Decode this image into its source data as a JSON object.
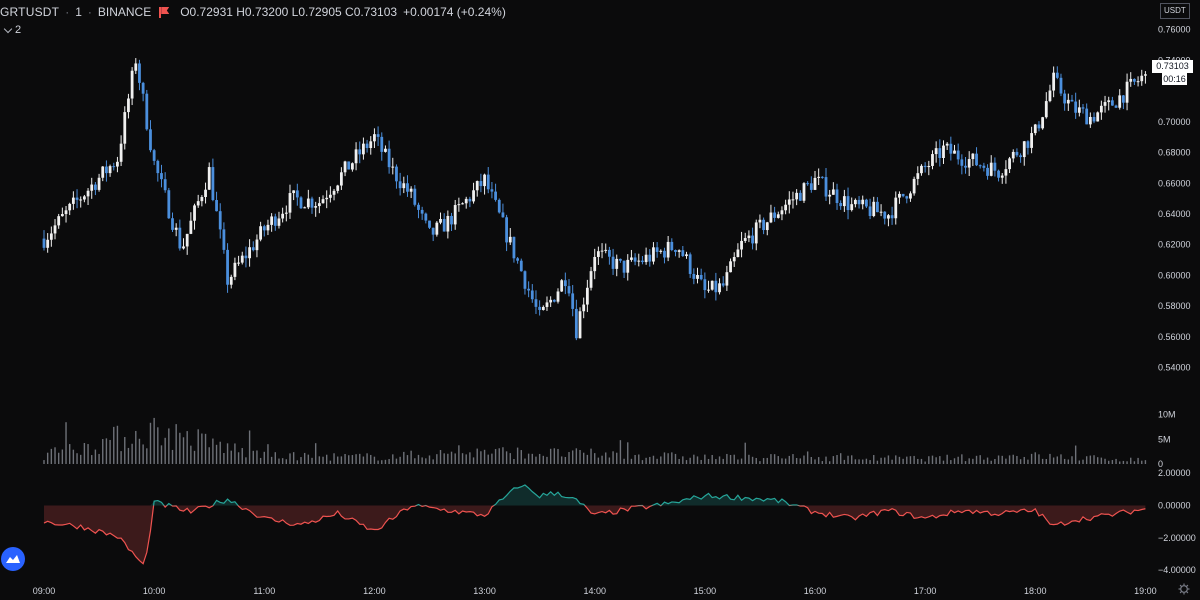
{
  "header": {
    "symbol": "GRTUSDT",
    "separator": "·",
    "interval": "1",
    "exchange": "BINANCE",
    "ohlc": "O0.72931 H0.73200 L0.72905 C0.73103",
    "change": "+0.00174 (+0.24%)",
    "flag_icon": "flag-icon",
    "flag_color": "#ef5350"
  },
  "collapse_toggle": {
    "icon": "chevron-down-icon",
    "count": "2"
  },
  "price_axis": {
    "currency": "USDT",
    "last_price": "0.73103",
    "countdown": "00:16",
    "ticks": [
      "0.76000",
      "0.74000",
      "0.72000",
      "0.70000",
      "0.68000",
      "0.66000",
      "0.64000",
      "0.62000",
      "0.60000",
      "0.58000",
      "0.56000",
      "0.54000"
    ]
  },
  "volume_axis": {
    "ticks": [
      "10M",
      "5M",
      "0"
    ]
  },
  "oscillator_axis": {
    "ticks": [
      "2.00000",
      "0.00000",
      "−2.00000",
      "−4.00000"
    ]
  },
  "time_axis": {
    "ticks": [
      "09:00",
      "10:00",
      "11:00",
      "12:00",
      "13:00",
      "14:00",
      "15:00",
      "16:00",
      "17:00",
      "18:00",
      "19:00"
    ]
  },
  "colors": {
    "background": "#0b0b0c",
    "candle_up": "#f0f0f0",
    "candle_down": "#4b8fdd",
    "volume": "#6e7178",
    "osc_positive": "#26a69a",
    "osc_negative": "#ef5350",
    "axis_text": "#d1d4dc"
  },
  "logo_icon": "tradingview-logo-icon",
  "settings_icon": "gear-icon",
  "chart_data": [
    {
      "type": "candlestick",
      "title": "GRTUSDT · 1 · BINANCE",
      "xlabel": "",
      "ylabel": "",
      "ylim": [
        0.53,
        0.765
      ],
      "x": [
        "09:00",
        "09:20",
        "09:40",
        "09:50",
        "10:00",
        "10:15",
        "10:30",
        "10:40",
        "11:00",
        "11:15",
        "11:30",
        "11:50",
        "12:00",
        "12:10",
        "12:20",
        "12:30",
        "12:40",
        "13:00",
        "13:20",
        "13:30",
        "13:45",
        "13:50",
        "14:00",
        "14:15",
        "14:30",
        "14:45",
        "15:00",
        "15:10",
        "15:20",
        "15:40",
        "16:00",
        "16:20",
        "16:40",
        "17:00",
        "17:10",
        "17:20",
        "17:40",
        "18:00",
        "18:10",
        "18:20",
        "18:30",
        "18:40",
        "19:00"
      ],
      "close": [
        0.624,
        0.651,
        0.676,
        0.741,
        0.673,
        0.617,
        0.668,
        0.597,
        0.63,
        0.65,
        0.648,
        0.677,
        0.69,
        0.668,
        0.652,
        0.626,
        0.635,
        0.662,
        0.603,
        0.572,
        0.601,
        0.565,
        0.615,
        0.605,
        0.612,
        0.62,
        0.589,
        0.593,
        0.62,
        0.642,
        0.662,
        0.645,
        0.64,
        0.67,
        0.682,
        0.677,
        0.668,
        0.693,
        0.727,
        0.709,
        0.703,
        0.71,
        0.731
      ],
      "note_series": "close prices sampled along the series; last bar O0.72931 H0.73200 L0.72905 C0.73103"
    },
    {
      "type": "bar",
      "name": "Volume",
      "ylim": [
        0,
        14
      ],
      "x": [
        "09:00",
        "10:00",
        "11:00",
        "12:00",
        "13:00",
        "14:00",
        "15:00",
        "16:00",
        "17:00",
        "18:00",
        "19:00"
      ],
      "values": [
        2.2,
        8.5,
        2.0,
        1.8,
        3.0,
        2.5,
        1.7,
        1.6,
        1.4,
        2.0,
        1.0
      ]
    },
    {
      "type": "area",
      "name": "Oscillator",
      "ylim": [
        -4.3,
        2.2
      ],
      "x": [
        "09:00",
        "09:20",
        "09:40",
        "09:55",
        "10:00",
        "10:20",
        "10:40",
        "11:00",
        "11:20",
        "11:40",
        "12:00",
        "12:20",
        "12:40",
        "13:00",
        "13:10",
        "13:20",
        "13:30",
        "13:40",
        "13:50",
        "14:00",
        "14:20",
        "14:40",
        "15:00",
        "15:20",
        "15:40",
        "16:00",
        "16:20",
        "16:40",
        "17:00",
        "17:20",
        "17:40",
        "18:00",
        "18:10",
        "18:20",
        "18:40",
        "19:00"
      ],
      "values": [
        -1.0,
        -1.3,
        -1.9,
        -3.8,
        0.2,
        -0.4,
        0.4,
        -0.8,
        -1.2,
        -0.5,
        -1.6,
        0.0,
        -0.3,
        -0.6,
        0.4,
        1.3,
        0.6,
        0.8,
        0.3,
        -0.6,
        -0.2,
        0.1,
        0.6,
        0.5,
        0.3,
        -0.4,
        -0.8,
        -0.3,
        -0.8,
        -0.3,
        -0.5,
        -0.3,
        -1.3,
        -0.9,
        -0.6,
        -0.2
      ]
    }
  ]
}
